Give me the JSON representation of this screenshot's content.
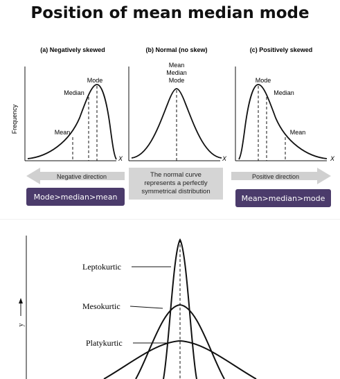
{
  "title": "Position of mean median mode",
  "skew_panels": {
    "negative": {
      "heading": "(a) Negatively skewed",
      "labels": [
        "Mode",
        "Median",
        "Mean"
      ],
      "direction": "Negative direction",
      "summary": "Mode>median>mean"
    },
    "normal": {
      "heading": "(b) Normal (no skew)",
      "labels": [
        "Mean",
        "Median",
        "Mode"
      ],
      "note_lines": [
        "The normal curve",
        "represents a perfectly",
        "symmetrical distribution"
      ]
    },
    "positive": {
      "heading": "(c) Positively skewed",
      "labels": [
        "Mode",
        "Median",
        "Mean"
      ],
      "direction": "Positive direction",
      "summary": "Mean>median>mode"
    },
    "y_axis_label": "Frequency",
    "x_axis_label": "X"
  },
  "kurtosis": {
    "labels": [
      "Leptokurtic",
      "Mesokurtic",
      "Platykurtic"
    ],
    "y_axis_label": "y"
  },
  "colors": {
    "summary_box": "#4b3b6b",
    "arrow": "#d0d0d0",
    "note_box": "#d5d5d5"
  }
}
